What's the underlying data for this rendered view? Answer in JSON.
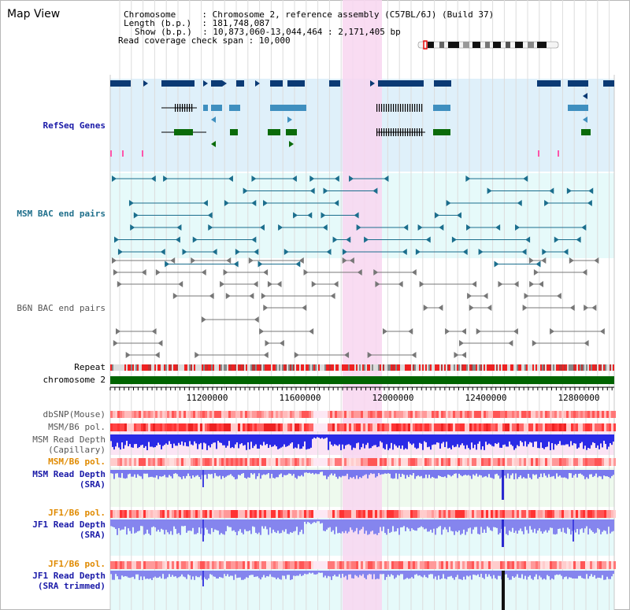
{
  "title": "Map View",
  "info": {
    "chromosome_label": "Chromosome",
    "chromosome_value": "Chromosome 2, reference assembly (C57BL/6J) (Build 37)",
    "length_label": "Length (b.p.)",
    "length_value": "181,748,087",
    "show_label": "Show (b.p.)",
    "show_value": "10,873,060-13,044,464 : 2,171,405 bp",
    "coverage_label": "Read coverage check span",
    "coverage_value": "10,000"
  },
  "tracks": {
    "refseq": "RefSeq Genes",
    "msm_bac": "MSM BAC end pairs",
    "b6n_bac": "B6N BAC end pairs",
    "repeat": "Repeat",
    "chromosome": "chromosome 2",
    "dbsnp": "dbSNP(Mouse)",
    "msm_b6_pol_1": "MSM/B6 pol.",
    "msm_depth_cap_1": "MSM Read Depth",
    "msm_depth_cap_2": "(Capillary)",
    "msm_b6_pol_2": "MSM/B6 pol.",
    "msm_depth_sra_1": "MSM Read Depth",
    "msm_depth_sra_2": "(SRA)",
    "jf1_b6_pol_1": "JF1/B6 pol.",
    "jf1_depth_sra_1": "JF1 Read Depth",
    "jf1_depth_sra_2": "(SRA)",
    "jf1_b6_pol_2": "JF1/B6 pol.",
    "jf1_depth_trim_1": "JF1 Read Depth",
    "jf1_depth_trim_2": "(SRA trimmed)"
  },
  "axis_ticks": [
    "11200000",
    "11600000",
    "12000000",
    "12400000",
    "12800000"
  ],
  "colors": {
    "refseq_bg": "#dff0fa",
    "bac_bg": "#e6fafa",
    "highlight": "#f8d6f0",
    "gene_dark": "#0b3a74",
    "gene_mid": "#3f8fbf",
    "gene_green": "#0a6b0a",
    "chrom_bar": "#006400",
    "snp_red": "#e33",
    "depth_blue": "#2020e0",
    "sra_blue": "#7878ee"
  }
}
